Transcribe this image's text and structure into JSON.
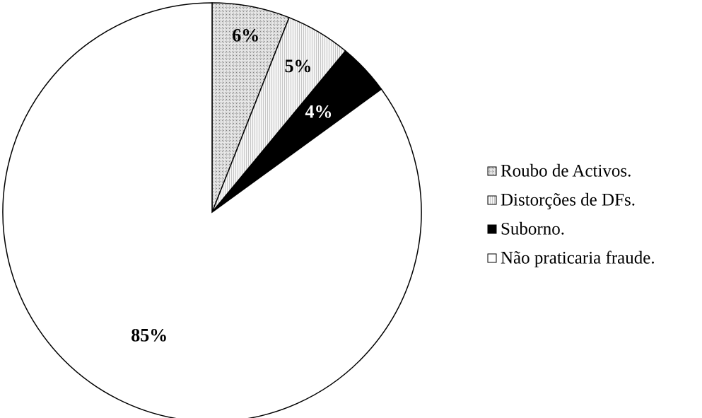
{
  "chart_data": {
    "type": "pie",
    "title": "",
    "slices": [
      {
        "label": "Roubo de Activos.",
        "value": 6,
        "display": "6%",
        "pattern": "crosshatch",
        "label_color": "#000000"
      },
      {
        "label": "Distorções de DFs.",
        "value": 5,
        "display": "5%",
        "pattern": "vertical-lines",
        "label_color": "#000000"
      },
      {
        "label": "Suborno.",
        "value": 4,
        "display": "4%",
        "pattern": "solid-black",
        "label_color": "#ffffff"
      },
      {
        "label": "Não praticaria fraude.",
        "value": 85,
        "display": "85%",
        "pattern": "white",
        "label_color": "#000000"
      }
    ],
    "start_angle": "12 o'clock",
    "direction": "clockwise",
    "legend_position": "right"
  }
}
